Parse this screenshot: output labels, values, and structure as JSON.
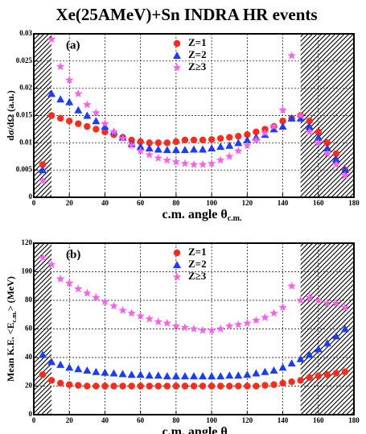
{
  "chart_data": [
    {
      "type": "scatter",
      "title": "Xe(25AMeV)+Sn INDRA HR events",
      "annotation": "(a)",
      "xlabel": "c.m. angle θ",
      "xlabel_sub": "c.m.",
      "ylabel": "dσ/dΩ (a.u.)",
      "xlim": [
        0,
        180
      ],
      "ylim": [
        0,
        0.03
      ],
      "xticks": [
        0,
        20,
        40,
        60,
        80,
        100,
        120,
        140,
        160,
        180
      ],
      "yticks": [
        0,
        0.005,
        0.01,
        0.015,
        0.02,
        0.025,
        0.03
      ],
      "grid": true,
      "legend": "top-center",
      "shaded": [
        [
          0,
          10
        ],
        [
          150,
          180
        ]
      ],
      "x": [
        5,
        10,
        15,
        20,
        25,
        30,
        35,
        40,
        45,
        50,
        55,
        60,
        65,
        70,
        75,
        80,
        85,
        90,
        95,
        100,
        105,
        110,
        115,
        120,
        125,
        130,
        135,
        140,
        145,
        150,
        155,
        160,
        165,
        170,
        175
      ],
      "series": [
        {
          "name": "Z=1",
          "color": "#ff2a1a",
          "marker": "circle",
          "values": [
            0.006,
            0.015,
            0.0145,
            0.014,
            0.0135,
            0.013,
            0.0125,
            0.012,
            0.0115,
            0.011,
            0.0105,
            0.0102,
            0.01,
            0.01,
            0.01,
            0.0102,
            0.0105,
            0.0105,
            0.0105,
            0.0106,
            0.0108,
            0.011,
            0.0112,
            0.0115,
            0.012,
            0.0125,
            0.013,
            0.014,
            0.0145,
            0.015,
            0.014,
            0.012,
            0.01,
            0.008,
            0.005
          ]
        },
        {
          "name": "Z=2",
          "color": "#1a3cff",
          "marker": "triangle",
          "values": [
            0.005,
            0.019,
            0.018,
            0.0175,
            0.016,
            0.015,
            0.014,
            0.013,
            0.012,
            0.011,
            0.0098,
            0.0093,
            0.009,
            0.0088,
            0.0087,
            0.0087,
            0.0087,
            0.0088,
            0.0088,
            0.009,
            0.0093,
            0.0095,
            0.01,
            0.0105,
            0.011,
            0.0115,
            0.0125,
            0.013,
            0.0145,
            0.0145,
            0.013,
            0.011,
            0.009,
            0.007,
            0.005
          ]
        },
        {
          "name": "Z≥3",
          "color": "#ff5cf0",
          "marker": "star",
          "values": [
            0.003,
            0.029,
            0.024,
            0.0215,
            0.019,
            0.017,
            0.0155,
            0.0135,
            0.012,
            0.0108,
            0.0095,
            0.0085,
            0.0078,
            0.0072,
            0.0068,
            0.0065,
            0.0062,
            0.006,
            0.006,
            0.0062,
            0.0068,
            0.0075,
            0.0085,
            0.0095,
            0.0105,
            0.0118,
            0.013,
            0.016,
            0.026,
            0.015,
            0.012,
            0.01,
            0.008,
            0.006,
            0.004
          ]
        }
      ]
    },
    {
      "type": "scatter",
      "annotation": "(b)",
      "xlabel": "c.m. angle θ",
      "xlabel_sub": "c.m.",
      "ylabel": "Mean K.E. <E",
      "ylabel_sub": "c.m.",
      "ylabel_end": "> (MeV)",
      "xlim": [
        0,
        180
      ],
      "ylim": [
        0,
        120
      ],
      "xticks": [
        0,
        20,
        40,
        60,
        80,
        100,
        120,
        140,
        160,
        180
      ],
      "yticks": [
        0,
        20,
        40,
        60,
        80,
        100,
        120
      ],
      "grid": true,
      "legend": "top-center",
      "shaded": [
        [
          0,
          10
        ],
        [
          150,
          180
        ]
      ],
      "x": [
        5,
        10,
        15,
        20,
        25,
        30,
        35,
        40,
        45,
        50,
        55,
        60,
        65,
        70,
        75,
        80,
        85,
        90,
        95,
        100,
        105,
        110,
        115,
        120,
        125,
        130,
        135,
        140,
        145,
        150,
        155,
        160,
        165,
        170,
        175
      ],
      "series": [
        {
          "name": "Z=1",
          "color": "#ff2a1a",
          "marker": "circle",
          "values": [
            28,
            24,
            22,
            21,
            20.5,
            20,
            20,
            20,
            20,
            20,
            20,
            20,
            20,
            20,
            20,
            20,
            20,
            20,
            20,
            20,
            20,
            20,
            20,
            20,
            20,
            20.5,
            21,
            22,
            23,
            24,
            26,
            27,
            28,
            29,
            30
          ]
        },
        {
          "name": "Z=2",
          "color": "#1a3cff",
          "marker": "triangle",
          "values": [
            42,
            37,
            35,
            33,
            32,
            31,
            30,
            29.5,
            29,
            28.5,
            28,
            28,
            27.5,
            27.5,
            27,
            27,
            27,
            27,
            27,
            27,
            27,
            27.5,
            27.5,
            28,
            29,
            30,
            31,
            33,
            36,
            39,
            42,
            46,
            50,
            55,
            60
          ]
        },
        {
          "name": "Z≥3",
          "color": "#ff5cf0",
          "marker": "star",
          "values": [
            110,
            105,
            95,
            92,
            88,
            85,
            82,
            79,
            76,
            73,
            71,
            69,
            67,
            65,
            64,
            62,
            61,
            60,
            59,
            59,
            60,
            62,
            63,
            64,
            66,
            68,
            71,
            75,
            90,
            80,
            82,
            80,
            78,
            78,
            75
          ]
        }
      ]
    }
  ]
}
